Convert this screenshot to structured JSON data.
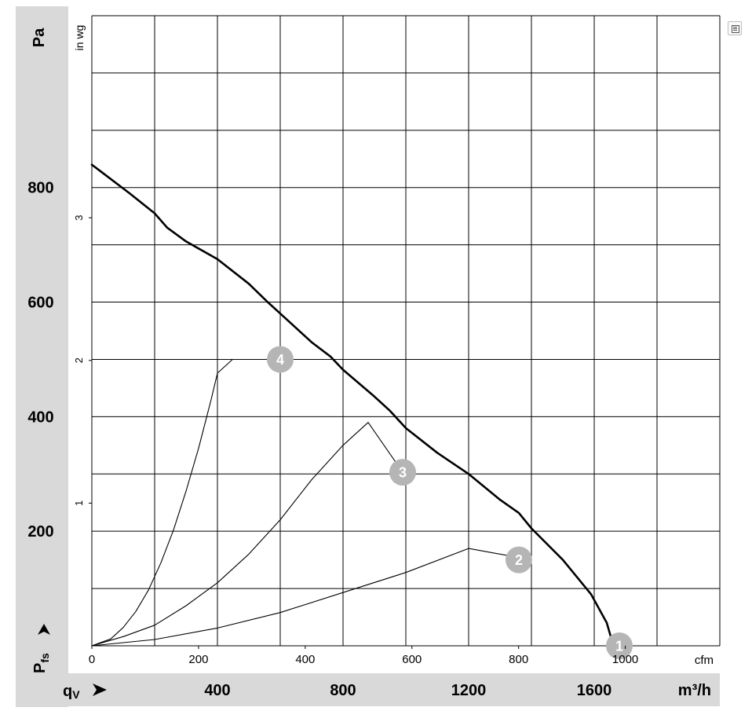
{
  "chart_data": {
    "type": "line",
    "y_unit_primary": "Pa",
    "y_unit_secondary": "in wg",
    "y_axis_symbol": "P",
    "y_axis_symbol_sub": "fs",
    "x_unit_primary": "m³/h",
    "x_unit_secondary": "cfm",
    "x_axis_symbol": "q",
    "x_axis_symbol_sub": "V",
    "pa_ticks": [
      200,
      400,
      600,
      800
    ],
    "inwg_ticks": [
      1,
      2,
      3
    ],
    "cfm_ticks": [
      0,
      200,
      400,
      600,
      800,
      "1000"
    ],
    "m3h_ticks": [
      400,
      800,
      1200,
      1600
    ],
    "xlim_m3h": [
      0,
      2000
    ],
    "ylim_pa": [
      0,
      1100
    ],
    "grid": true,
    "series": [
      {
        "type": "fan_curve",
        "x": [
          0,
          120,
          200,
          240,
          300,
          400,
          500,
          560,
          600,
          700,
          760,
          800,
          900,
          950,
          1000,
          1100,
          1200,
          1300,
          1360,
          1400,
          1500,
          1590,
          1640,
          1660
        ],
        "y": [
          840,
          790,
          755,
          730,
          706,
          675,
          632,
          600,
          580,
          530,
          505,
          482,
          435,
          410,
          380,
          337,
          300,
          255,
          232,
          205,
          150,
          90,
          40,
          2
        ]
      },
      {
        "type": "system_curve",
        "x": [
          0,
          60,
          100,
          140,
          180,
          220,
          260,
          300,
          340,
          380,
          400,
          448
        ],
        "y": [
          0,
          12,
          32,
          60,
          97,
          145,
          202,
          270,
          345,
          430,
          476,
          500
        ]
      },
      {
        "type": "system_curve",
        "x": [
          0,
          100,
          200,
          300,
          400,
          500,
          600,
          700,
          800,
          880,
          990
        ],
        "y": [
          0,
          16,
          36,
          70,
          110,
          160,
          220,
          290,
          350,
          390,
          303
        ]
      },
      {
        "type": "system_curve",
        "x": [
          0,
          200,
          400,
          600,
          800,
          1000,
          1200,
          1400
        ],
        "y": [
          0,
          11,
          31,
          58,
          93,
          128,
          170,
          150
        ]
      }
    ],
    "operating_points": [
      {
        "label": "1",
        "x": 1680,
        "y": 0
      },
      {
        "label": "2",
        "x": 1360,
        "y": 150
      },
      {
        "label": "3",
        "x": 990,
        "y": 303
      },
      {
        "label": "4",
        "x": 600,
        "y": 500
      }
    ]
  }
}
